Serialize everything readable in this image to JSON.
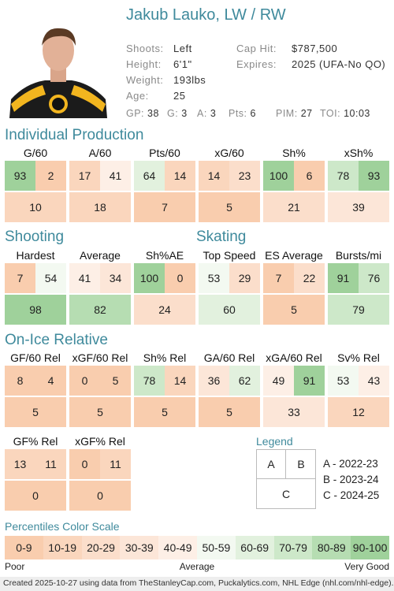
{
  "header": {
    "name": "Jakub Lauko, LW / RW"
  },
  "info": [
    {
      "label": "Shoots:",
      "value": "Left"
    },
    {
      "label": "Height:",
      "value": "6'1\""
    },
    {
      "label": "Weight:",
      "value": "193lbs"
    },
    {
      "label": "Age:",
      "value": "25"
    },
    {
      "label": "Cap Hit:",
      "value": "$787,500"
    },
    {
      "label": "Expires:",
      "value": "2025 (UFA-No QO)"
    }
  ],
  "stats": [
    {
      "label": "GP:",
      "value": 38
    },
    {
      "label": "G:",
      "value": 3
    },
    {
      "label": "A:",
      "value": 3
    },
    {
      "label": "Pts:",
      "value": 6
    },
    {
      "label": "PIM:",
      "value": 27
    },
    {
      "label": "TOI:",
      "value": "10:03"
    }
  ],
  "sections": [
    {
      "title": "Individual Production",
      "metrics": [
        {
          "name": "G/60",
          "values": [
            93,
            2,
            10
          ]
        },
        {
          "name": "A/60",
          "values": [
            17,
            41,
            18
          ]
        },
        {
          "name": "Pts/60",
          "values": [
            64,
            14,
            7
          ]
        },
        {
          "name": "xG/60",
          "values": [
            14,
            23,
            5
          ]
        },
        {
          "name": "Sh%",
          "values": [
            100,
            6,
            21
          ]
        },
        {
          "name": "xSh%",
          "values": [
            78,
            93,
            39
          ]
        }
      ]
    },
    {
      "title": "Shooting",
      "metrics": [
        {
          "name": "Hardest",
          "values": [
            7,
            54,
            98
          ]
        },
        {
          "name": "Average",
          "values": [
            41,
            34,
            82
          ]
        },
        {
          "name": "Sh%AE",
          "values": [
            100,
            0,
            24
          ]
        }
      ]
    },
    {
      "title": "Skating",
      "metrics": [
        {
          "name": "Top Speed",
          "values": [
            53,
            29,
            60
          ]
        },
        {
          "name": "ES Average",
          "values": [
            7,
            22,
            5
          ]
        },
        {
          "name": "Bursts/mi",
          "values": [
            91,
            76,
            79
          ]
        }
      ]
    },
    {
      "title": "On-Ice Relative",
      "metrics": [
        {
          "name": "GF/60 Rel",
          "values": [
            8,
            4,
            5
          ]
        },
        {
          "name": "xGF/60 Rel",
          "values": [
            0,
            5,
            5
          ]
        },
        {
          "name": "Sh% Rel",
          "values": [
            78,
            14,
            5
          ]
        },
        {
          "name": "GA/60 Rel",
          "values": [
            36,
            62,
            5
          ]
        },
        {
          "name": "xGA/60 Rel",
          "values": [
            49,
            91,
            33
          ]
        },
        {
          "name": "Sv% Rel",
          "values": [
            53,
            43,
            12
          ]
        },
        {
          "name": "GF% Rel",
          "values": [
            13,
            11,
            0
          ]
        },
        {
          "name": "xGF% Rel",
          "values": [
            0,
            11,
            0
          ]
        }
      ]
    }
  ],
  "legend": {
    "title": "Legend",
    "cells": [
      "A",
      "B",
      "C"
    ],
    "items": [
      "A - 2022-23",
      "B - 2023-24",
      "C - 2024-25"
    ]
  },
  "color_scale": {
    "title": "Percentiles Color Scale",
    "labels": [
      "0-9",
      "10-19",
      "20-29",
      "30-39",
      "40-49",
      "50-59",
      "60-69",
      "70-79",
      "80-89",
      "90-100"
    ],
    "low": "Poor",
    "mid": "Average",
    "high": "Very Good"
  },
  "footer": "Created 2025-10-27 using data from TheStanleyCap.com, Puckalytics.com, NHL Edge (nhl.com/nhl-edge)."
}
